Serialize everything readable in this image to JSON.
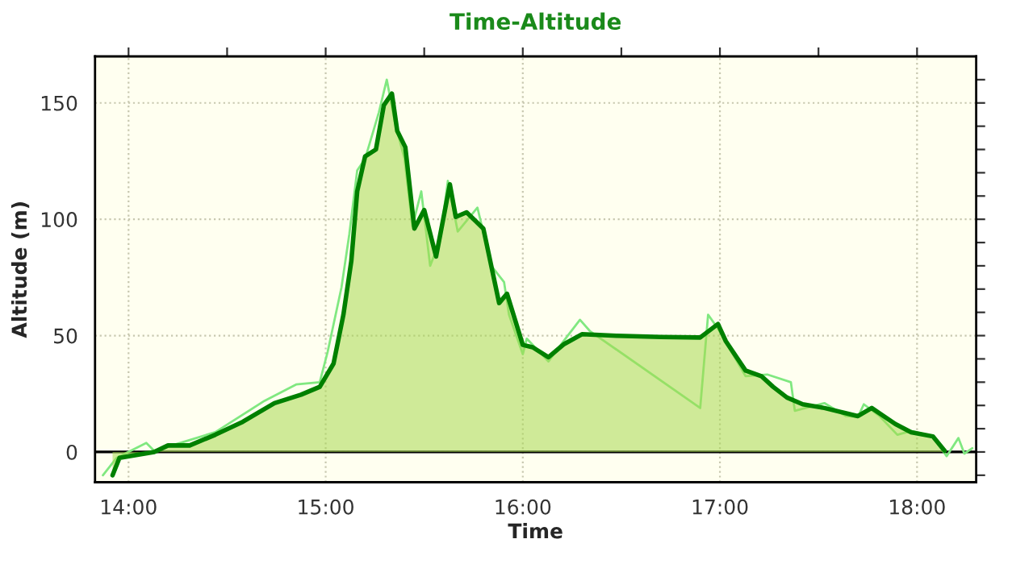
{
  "chart_data": {
    "type": "area",
    "title": "Time-Altitude",
    "xlabel": "Time",
    "ylabel": "Altitude (m)",
    "xlim": [
      13.83,
      18.3
    ],
    "ylim": [
      -13,
      170
    ],
    "xticks": [
      {
        "value": 14,
        "label": "14:00"
      },
      {
        "value": 14.5,
        "label": null
      },
      {
        "value": 15,
        "label": "15:00"
      },
      {
        "value": 15.5,
        "label": null
      },
      {
        "value": 16,
        "label": "16:00"
      },
      {
        "value": 16.5,
        "label": null
      },
      {
        "value": 17,
        "label": "17:00"
      },
      {
        "value": 17.5,
        "label": null
      },
      {
        "value": 18,
        "label": "18:00"
      }
    ],
    "yticks": [
      {
        "value": -10,
        "label": null
      },
      0,
      {
        "value": 10,
        "label": null
      },
      {
        "value": 20,
        "label": null
      },
      {
        "value": 30,
        "label": null
      },
      {
        "value": 40,
        "label": null
      },
      50,
      {
        "value": 60,
        "label": null
      },
      {
        "value": 70,
        "label": null
      },
      {
        "value": 80,
        "label": null
      },
      {
        "value": 90,
        "label": null
      },
      100,
      {
        "value": 110,
        "label": null
      },
      {
        "value": 120,
        "label": null
      },
      {
        "value": 130,
        "label": null
      },
      {
        "value": 140,
        "label": null
      },
      150,
      {
        "value": 160,
        "label": null
      }
    ],
    "grid": true,
    "legend": false,
    "ref_lines": [
      {
        "axis": "y",
        "value": 0,
        "color": "#000000",
        "line_style": "solid"
      }
    ],
    "series": [
      {
        "type": "line",
        "color": "#80e880",
        "x": [
          13.87,
          13.94,
          14.09,
          14.13,
          14.22,
          14.44,
          14.69,
          14.85,
          14.97,
          15.01,
          15.08,
          15.12,
          15.16,
          15.2,
          15.27,
          15.31,
          15.35,
          15.4,
          15.44,
          15.485,
          15.53,
          15.58,
          15.62,
          15.67,
          15.77,
          15.84,
          15.905,
          15.93,
          16.0,
          16.02,
          16.13,
          16.21,
          16.29,
          16.34,
          16.9,
          16.94,
          16.99,
          17.13,
          17.24,
          17.36,
          17.38,
          17.53,
          17.64,
          17.665,
          17.695,
          17.7,
          17.73,
          17.81,
          17.9,
          17.97,
          18.08,
          18.15,
          18.21,
          18.24,
          18.28
        ],
        "values": [
          -10,
          -2.5,
          3.9,
          0.5,
          2.8,
          8.5,
          22,
          29,
          30,
          43,
          70.6,
          93.6,
          121,
          126,
          146,
          160,
          142,
          126,
          97,
          112,
          80,
          91,
          116.5,
          94.7,
          105,
          80,
          73,
          59,
          42,
          48.7,
          38.9,
          48,
          56.8,
          52,
          18.9,
          59,
          53,
          32.6,
          33.3,
          30,
          17.7,
          21,
          15.4,
          null,
          null,
          15,
          20.5,
          15.4,
          7.4,
          9,
          6.7,
          -1.8,
          6,
          -0.7,
          1.6
        ]
      },
      {
        "color": "#008000",
        "x": [
          13.919,
          13.954,
          14.13,
          14.2,
          14.31,
          14.44,
          14.58,
          14.74,
          14.875,
          14.97,
          15.04,
          15.09,
          15.13,
          15.16,
          15.2,
          15.255,
          15.295,
          15.336,
          15.363,
          15.404,
          15.45,
          15.5,
          15.56,
          15.63,
          15.66,
          15.715,
          15.8,
          15.88,
          15.92,
          16.0,
          16.05,
          16.13,
          16.21,
          16.3,
          16.48,
          16.7,
          16.9,
          16.99,
          17.03,
          17.13,
          17.21,
          17.27,
          17.34,
          17.42,
          17.53,
          17.7,
          17.77,
          17.89,
          17.97,
          18.08,
          18.14
        ],
        "values": [
          -10,
          -2.5,
          0,
          2.8,
          2.8,
          7.4,
          13,
          21,
          24.6,
          28,
          38,
          59,
          82,
          112,
          127,
          130,
          149,
          154,
          138,
          131,
          96,
          104,
          84,
          115,
          101,
          103,
          96,
          64,
          68,
          46,
          45,
          40.7,
          46.4,
          50.6,
          49.9,
          49.4,
          49.2,
          55,
          47.6,
          35,
          32.6,
          28,
          23.4,
          20.5,
          18.9,
          15.4,
          18.9,
          12,
          8.5,
          6.7,
          0.5
        ]
      }
    ]
  }
}
